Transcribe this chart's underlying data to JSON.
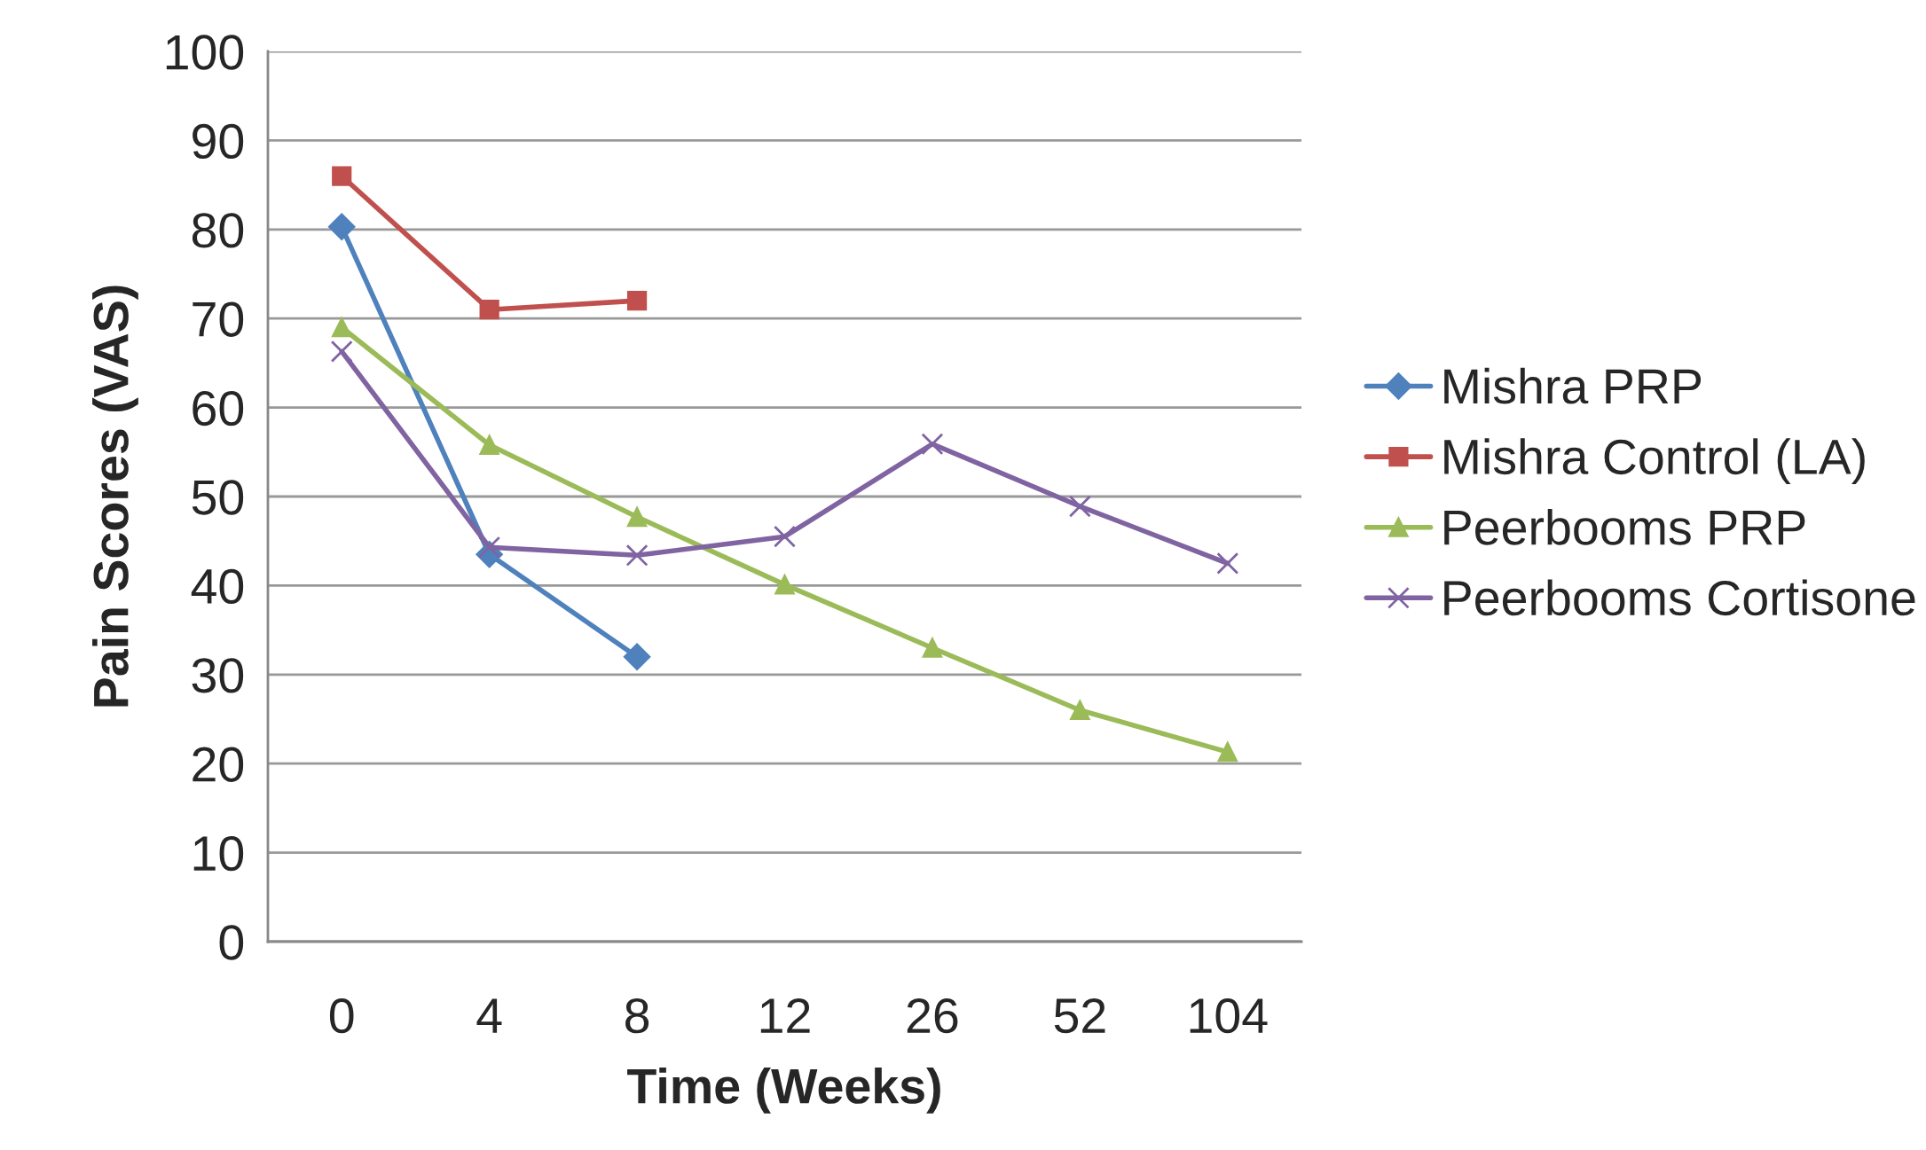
{
  "chart_data": {
    "type": "line",
    "xlabel": "Time (Weeks)",
    "ylabel": "Pain Scores (VAS)",
    "categories": [
      "0",
      "4",
      "8",
      "12",
      "26",
      "52",
      "104"
    ],
    "series": [
      {
        "name": "Mishra PRP",
        "color": "#4f81bd",
        "marker": "diamond",
        "values": [
          80.3,
          43.5,
          32,
          null,
          null,
          null,
          null
        ]
      },
      {
        "name": "Mishra Control (LA)",
        "color": "#c0504d",
        "marker": "square",
        "values": [
          86,
          71,
          72,
          null,
          null,
          null,
          null
        ]
      },
      {
        "name": "Peerbooms PRP",
        "color": "#9bbb59",
        "marker": "triangle",
        "values": [
          69,
          55.8,
          47.7,
          40.1,
          33,
          26,
          21.3
        ]
      },
      {
        "name": "Peerbooms Cortisone",
        "color": "#8064a2",
        "marker": "cross",
        "values": [
          66.3,
          44.3,
          43.4,
          45.5,
          55.9,
          48.9,
          42.5
        ]
      }
    ],
    "ylim": [
      0,
      100
    ],
    "yticks": [
      0,
      10,
      20,
      30,
      40,
      50,
      60,
      70,
      80,
      90,
      100
    ],
    "grid": "y",
    "legend": "right"
  }
}
